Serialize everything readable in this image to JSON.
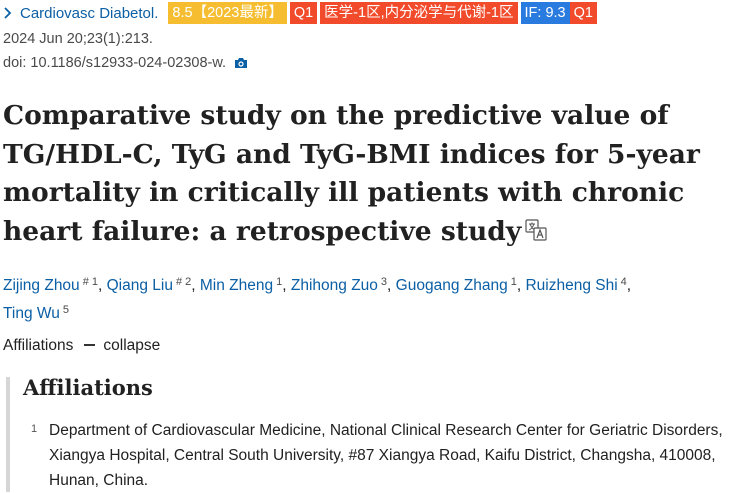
{
  "header": {
    "journal": "Cardiovasc Diabetol.",
    "badges": {
      "score": "8.5【2023最新】",
      "quartile": "Q1",
      "category": "医学-1区,内分泌学与代谢-1区",
      "impact_factor": "IF: 9.3",
      "if_quartile": "Q1"
    },
    "colors": {
      "link": "#0b5fa5",
      "score": "#f5bd2f",
      "red": "#f24b2b",
      "if": "#2a7be0"
    }
  },
  "citation": {
    "date": "2024 Jun 20;23(1):213.",
    "doi": "doi: 10.1186/s12933-024-02308-w."
  },
  "article": {
    "title": "Comparative study on the predictive value of TG/HDL-C, TyG and TyG-BMI indices for 5-year mortality in critically ill patients with chronic heart failure: a retrospective study"
  },
  "authors": [
    {
      "name": "Zijing Zhou",
      "sup": "# 1"
    },
    {
      "name": "Qiang Liu",
      "sup": "# 2"
    },
    {
      "name": "Min Zheng",
      "sup": "1"
    },
    {
      "name": "Zhihong Zuo",
      "sup": "3"
    },
    {
      "name": "Guogang Zhang",
      "sup": "1"
    },
    {
      "name": "Ruizheng Shi",
      "sup": "4"
    },
    {
      "name": "Ting Wu",
      "sup": "5"
    }
  ],
  "affiliations_toggle": {
    "label": "Affiliations",
    "action": "collapse"
  },
  "affiliations": {
    "heading": "Affiliations",
    "items": [
      {
        "num": "1",
        "text": "Department of Cardiovascular Medicine, National Clinical Research Center for Geriatric Disorders, Xiangya Hospital, Central South University, #87 Xiangya Road, Kaifu District, Changsha, 410008, Hunan, China."
      }
    ]
  }
}
